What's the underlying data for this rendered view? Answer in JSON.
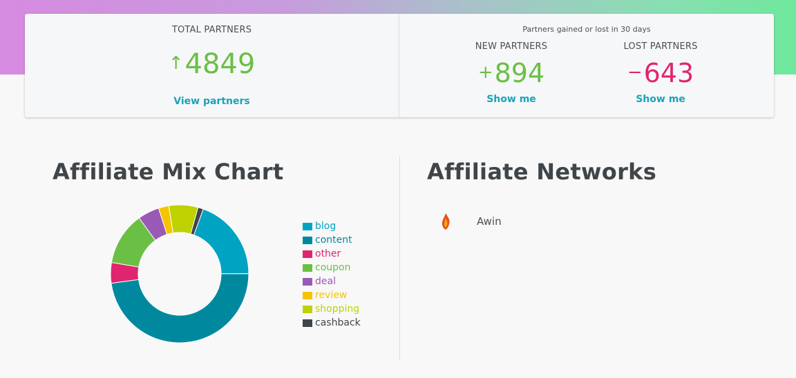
{
  "colors": {
    "positive": "#6abf45",
    "negative": "#e0256e",
    "link": "#1aa3b8"
  },
  "stats": {
    "total_label": "TOTAL PARTNERS",
    "total_value": "4849",
    "total_arrow": "↑",
    "view_link": "View partners",
    "gained_label": "Partners gained or lost in 30 days",
    "new_label": "NEW PARTNERS",
    "new_sign": "+",
    "new_value": "894",
    "lost_label": "LOST PARTNERS",
    "lost_sign": "−",
    "lost_value": "643",
    "show_me": "Show me"
  },
  "mix": {
    "title": "Affiliate Mix Chart"
  },
  "networks": {
    "title": "Affiliate Networks",
    "items": [
      {
        "name": "Awin",
        "icon": "awin-flame-icon"
      }
    ]
  },
  "chart_data": {
    "type": "pie",
    "categories": [
      "blog",
      "content",
      "other",
      "coupon",
      "deal",
      "review",
      "shopping",
      "cashback"
    ],
    "values": [
      18.5,
      45.6,
      4.6,
      11.8,
      4.8,
      2.3,
      6.5,
      1.2
    ],
    "colors": [
      "#00a4c2",
      "#00899e",
      "#e0256e",
      "#6abf45",
      "#9b59b6",
      "#f5c400",
      "#bdd200",
      "#3f4548"
    ],
    "legend": "right"
  }
}
